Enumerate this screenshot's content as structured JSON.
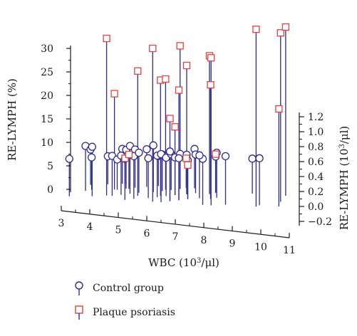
{
  "chart_data": {
    "type": "scatter",
    "subtype": "3d-stem",
    "xlabel": "WBC (10",
    "xlabel_sup": "3",
    "xlabel_unit": "/μl)",
    "ylabel_left": "RE-LYMPH (%)",
    "ylabel_right": "RE-LYMPH (10",
    "ylabel_right_sup": "3",
    "ylabel_right_unit": "/μl)",
    "x_ticks": [
      "3",
      "4",
      "5",
      "6",
      "7",
      "8",
      "9",
      "10",
      "11"
    ],
    "left_ticks": [
      "30",
      "25",
      "20",
      "15",
      "10",
      "5",
      "0"
    ],
    "right_ticks": [
      "1.2",
      "1.0",
      "0.8",
      "0.6",
      "0.4",
      "0.2",
      "0.0",
      "−0.2"
    ],
    "xlim": [
      3,
      11
    ],
    "ylim_left": [
      0,
      30
    ],
    "zlim_right": [
      -0.2,
      1.2
    ],
    "grid": false,
    "legend_position": "bottom",
    "series": [
      {
        "name": "Control group",
        "marker": "circle",
        "color": "#2b2b8c",
        "points": [
          {
            "x": 3.7,
            "y": 6.5
          },
          {
            "x": 4.2,
            "y": 9
          },
          {
            "x": 4.3,
            "y": 8
          },
          {
            "x": 4.5,
            "y": 9
          },
          {
            "x": 4.4,
            "y": 6.5
          },
          {
            "x": 4.9,
            "y": 6.5
          },
          {
            "x": 5.2,
            "y": 7
          },
          {
            "x": 5.3,
            "y": 6
          },
          {
            "x": 5.4,
            "y": 8
          },
          {
            "x": 5.5,
            "y": 7
          },
          {
            "x": 5.6,
            "y": 8
          },
          {
            "x": 5.7,
            "y": 6.5
          },
          {
            "x": 5.8,
            "y": 9
          },
          {
            "x": 5.9,
            "y": 8
          },
          {
            "x": 6.0,
            "y": 7
          },
          {
            "x": 6.1,
            "y": 7.5
          },
          {
            "x": 6.3,
            "y": 8
          },
          {
            "x": 6.5,
            "y": 6.5
          },
          {
            "x": 6.6,
            "y": 9
          },
          {
            "x": 6.7,
            "y": 6.5
          },
          {
            "x": 6.8,
            "y": 7
          },
          {
            "x": 6.9,
            "y": 7
          },
          {
            "x": 7.0,
            "y": 7.5
          },
          {
            "x": 7.1,
            "y": 6.5
          },
          {
            "x": 7.2,
            "y": 7
          },
          {
            "x": 7.3,
            "y": 8
          },
          {
            "x": 7.4,
            "y": 6.5
          },
          {
            "x": 7.5,
            "y": 7
          },
          {
            "x": 7.6,
            "y": 6.5
          },
          {
            "x": 7.8,
            "y": 7
          },
          {
            "x": 8.0,
            "y": 8
          },
          {
            "x": 7.9,
            "y": 6
          },
          {
            "x": 8.1,
            "y": 7
          },
          {
            "x": 8.5,
            "y": 6.5
          },
          {
            "x": 8.3,
            "y": 7
          },
          {
            "x": 8.8,
            "y": 6.5
          },
          {
            "x": 9.3,
            "y": 7
          },
          {
            "x": 8.9,
            "y": 7.5
          },
          {
            "x": 10.1,
            "y": 6
          },
          {
            "x": 10.5,
            "y": 6.5
          }
        ]
      },
      {
        "name": "Plaque psoriasis",
        "marker": "square",
        "color": "#e64040",
        "points": [
          {
            "x": 5.0,
            "y": 32
          },
          {
            "x": 5.2,
            "y": 20
          },
          {
            "x": 5.5,
            "y": 6
          },
          {
            "x": 6.1,
            "y": 25
          },
          {
            "x": 5.7,
            "y": 7
          },
          {
            "x": 6.7,
            "y": 30
          },
          {
            "x": 6.9,
            "y": 23
          },
          {
            "x": 7.0,
            "y": 23
          },
          {
            "x": 7.3,
            "y": 15
          },
          {
            "x": 7.4,
            "y": 13
          },
          {
            "x": 7.5,
            "y": 30
          },
          {
            "x": 7.6,
            "y": 21
          },
          {
            "x": 7.8,
            "y": 26
          },
          {
            "x": 7.7,
            "y": 6
          },
          {
            "x": 7.9,
            "y": 5
          },
          {
            "x": 8.6,
            "y": 28
          },
          {
            "x": 8.8,
            "y": 28
          },
          {
            "x": 8.7,
            "y": 22
          },
          {
            "x": 8.8,
            "y": 7
          },
          {
            "x": 10.4,
            "y": 34
          },
          {
            "x": 11.2,
            "y": 33
          },
          {
            "x": 11.3,
            "y": 34
          },
          {
            "x": 11.2,
            "y": 17
          }
        ]
      }
    ]
  }
}
